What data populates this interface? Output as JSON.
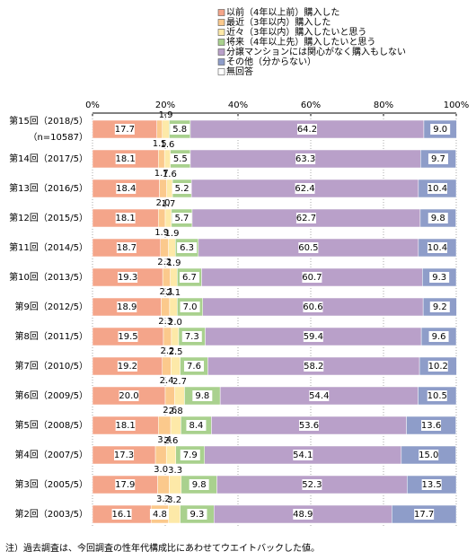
{
  "chart_data": {
    "type": "stacked_barh",
    "categories": [
      "第15回（2018/5）",
      "第14回（2017/5）",
      "第13回（2016/5）",
      "第12回（2015/5）",
      "第11回（2014/5）",
      "第10回（2013/5）",
      "第9回（2012/5）",
      "第8回（2011/5）",
      "第7回（2010/5）",
      "第6回（2009/5）",
      "第5回（2008/5）",
      "第4回（2007/5）",
      "第3回（2005/5）",
      "第2回（2003/5）"
    ],
    "sample_note": "（n=10587）",
    "series": [
      {
        "name": "以前（4年以上前）購入した",
        "color": "#f4a58a",
        "values": [
          17.7,
          18.1,
          18.4,
          18.1,
          18.7,
          19.3,
          18.9,
          19.5,
          19.2,
          20.0,
          18.1,
          17.3,
          17.9,
          16.1
        ],
        "value_labels": [
          "17.7",
          "18.1",
          "18.4",
          "18.1",
          "18.7",
          "19.3",
          "18.9",
          "19.5",
          "19.2",
          "20.0",
          "18.1",
          "17.3",
          "17.9",
          "16.1"
        ]
      },
      {
        "name": "最近（3年以内）購入した",
        "color": "#fbc98c",
        "values": [
          1.5,
          1.7,
          2.0,
          1.9,
          2.2,
          2.1,
          2.3,
          2.2,
          2.4,
          2.6,
          3.4,
          3.0,
          3.2,
          4.8
        ],
        "value_labels": [
          "1.5",
          "1.7",
          "2.0",
          "1.9",
          "2.2",
          "2.1",
          "2.3",
          "2.2",
          "2.4",
          "2.6",
          "3.4",
          "3.0",
          "3.2",
          "4.8"
        ]
      },
      {
        "name": "近々（3年以内）購入したいと思う",
        "color": "#fde9a8",
        "values": [
          1.9,
          1.6,
          1.6,
          1.7,
          1.9,
          1.9,
          2.1,
          2.0,
          2.5,
          2.7,
          2.8,
          2.6,
          3.3,
          3.2
        ],
        "value_labels": [
          "1.9",
          "1.6",
          "1.6",
          "1.7",
          "1.9",
          "1.9",
          "2.1",
          "2.0",
          "2.5",
          "2.7",
          "2.8",
          "2.6",
          "3.3",
          "3.2"
        ]
      },
      {
        "name": "将来（4年以上先）購入したいと思う",
        "color": "#a9d18e",
        "values": [
          5.8,
          5.5,
          5.2,
          5.7,
          6.3,
          6.7,
          7.0,
          7.3,
          7.6,
          9.8,
          8.4,
          7.9,
          9.8,
          9.3
        ],
        "value_labels": [
          "5.8",
          "5.5",
          "5.2",
          "5.7",
          "6.3",
          "6.7",
          "7.0",
          "7.3",
          "7.6",
          "9.8",
          "8.4",
          "7.9",
          "9.8",
          "9.3"
        ]
      },
      {
        "name": "分譲マンションには関心がなく購入もしない",
        "color": "#b9a0c9",
        "values": [
          64.2,
          63.3,
          62.4,
          62.7,
          60.5,
          60.7,
          60.6,
          59.4,
          58.2,
          54.4,
          53.6,
          54.1,
          52.3,
          48.9
        ],
        "value_labels": [
          "64.2",
          "63.3",
          "62.4",
          "62.7",
          "60.5",
          "60.7",
          "60.6",
          "59.4",
          "58.2",
          "54.4",
          "53.6",
          "54.1",
          "52.3",
          "48.9"
        ]
      },
      {
        "name": "その他（分からない）",
        "color": "#8e9dc9",
        "values": [
          9.0,
          9.7,
          10.4,
          9.8,
          10.4,
          9.3,
          9.2,
          9.6,
          10.2,
          10.5,
          13.6,
          15.0,
          13.5,
          17.7
        ],
        "value_labels": [
          "9.0",
          "9.7",
          "10.4",
          "9.8",
          "10.4",
          "9.3",
          "9.2",
          "9.6",
          "10.2",
          "10.5",
          "13.6",
          "15.0",
          "13.5",
          "17.7"
        ]
      },
      {
        "name": "無回答",
        "color": "#ffffff",
        "values": [
          0,
          0,
          0,
          0,
          0,
          0,
          0,
          0,
          0,
          0,
          0,
          0,
          0,
          0
        ]
      }
    ],
    "xlim": [
      0,
      100
    ],
    "xticks": [
      {
        "value": 0,
        "label": "0%"
      },
      {
        "value": 20,
        "label": "20%"
      },
      {
        "value": 40,
        "label": "40%"
      },
      {
        "value": 60,
        "label": "60%"
      },
      {
        "value": 80,
        "label": "80%"
      },
      {
        "value": 100,
        "label": "100%"
      }
    ],
    "grid": true,
    "footnote": "注）過去調査は、今回調査の性年代構成比にあわせてウエイトバックした値。"
  }
}
